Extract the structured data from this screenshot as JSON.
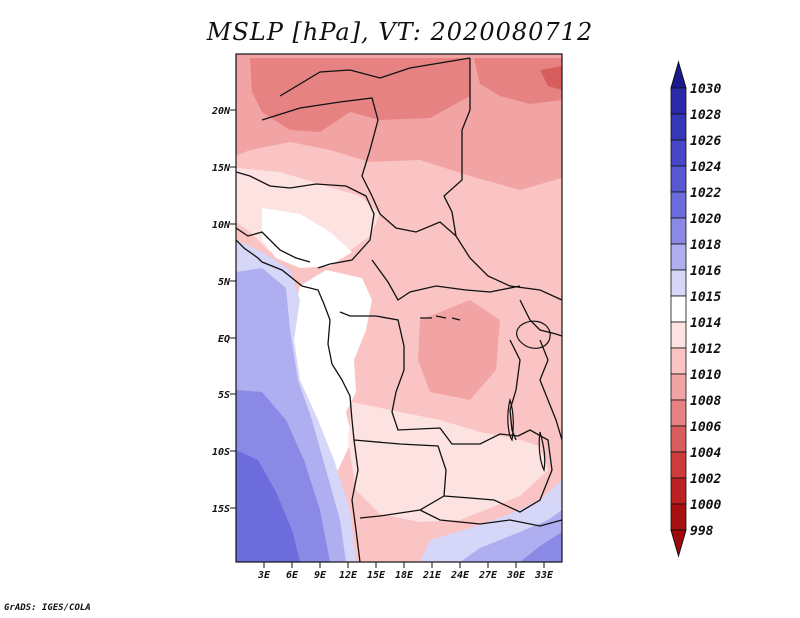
{
  "title": "MSLP [hPa], VT: 2020080712",
  "footer": "GrADS: IGES/COLA",
  "lat_labels": [
    "20N",
    "15N",
    "10N",
    "5N",
    "EQ",
    "5S",
    "10S",
    "15S"
  ],
  "lon_labels": [
    "3E",
    "6E",
    "9E",
    "12E",
    "15E",
    "18E",
    "21E",
    "24E",
    "27E",
    "30E",
    "33E"
  ],
  "colorbar": {
    "levels": [
      {
        "label": "1030",
        "color": "#20209a"
      },
      {
        "label": "1028",
        "color": "#2a2aa8"
      },
      {
        "label": "1026",
        "color": "#3636b8"
      },
      {
        "label": "1024",
        "color": "#4646c6"
      },
      {
        "label": "1022",
        "color": "#5858d2"
      },
      {
        "label": "1020",
        "color": "#6c6cdc"
      },
      {
        "label": "1018",
        "color": "#8a8ae6"
      },
      {
        "label": "1016",
        "color": "#aeaef0"
      },
      {
        "label": "1015",
        "color": "#d6d6f8"
      },
      {
        "label": "1014",
        "color": "#ffffff"
      },
      {
        "label": "1012",
        "color": "#fde2e2"
      },
      {
        "label": "1010",
        "color": "#fac4c4"
      },
      {
        "label": "1008",
        "color": "#f2a4a4"
      },
      {
        "label": "1006",
        "color": "#e68282"
      },
      {
        "label": "1004",
        "color": "#d85e5e"
      },
      {
        "label": "1002",
        "color": "#cc3c3c"
      },
      {
        "label": "1000",
        "color": "#bc2222"
      },
      {
        "label": "998",
        "color": "#a81010"
      }
    ],
    "top_color": "#1a1a90",
    "bottom_color": "#a00a0a"
  }
}
